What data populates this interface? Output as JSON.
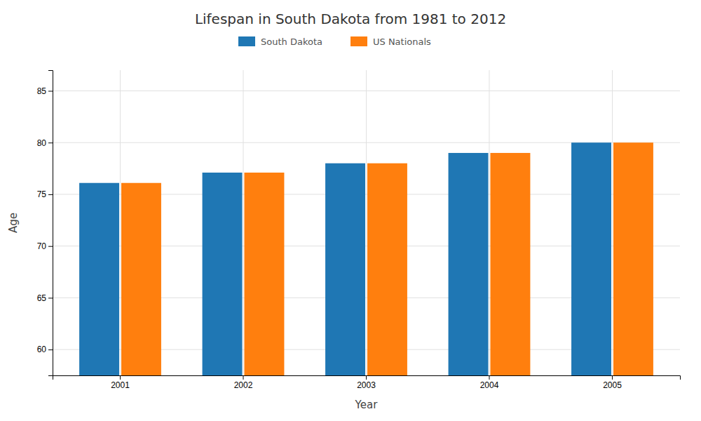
{
  "chart_data": {
    "type": "bar",
    "title": "Lifespan in South Dakota from 1981 to 2012",
    "xlabel": "Year",
    "ylabel": "Age",
    "categories": [
      "2001",
      "2002",
      "2003",
      "2004",
      "2005"
    ],
    "series": [
      {
        "name": "South Dakota",
        "values": [
          76.1,
          77.1,
          78.0,
          79.0,
          80.0
        ]
      },
      {
        "name": "US Nationals",
        "values": [
          76.1,
          77.1,
          78.0,
          79.0,
          80.0
        ]
      }
    ],
    "ylim": [
      57.5,
      87
    ],
    "yticks": [
      60,
      65,
      70,
      75,
      80,
      85
    ],
    "grid": true,
    "legend": "top"
  }
}
